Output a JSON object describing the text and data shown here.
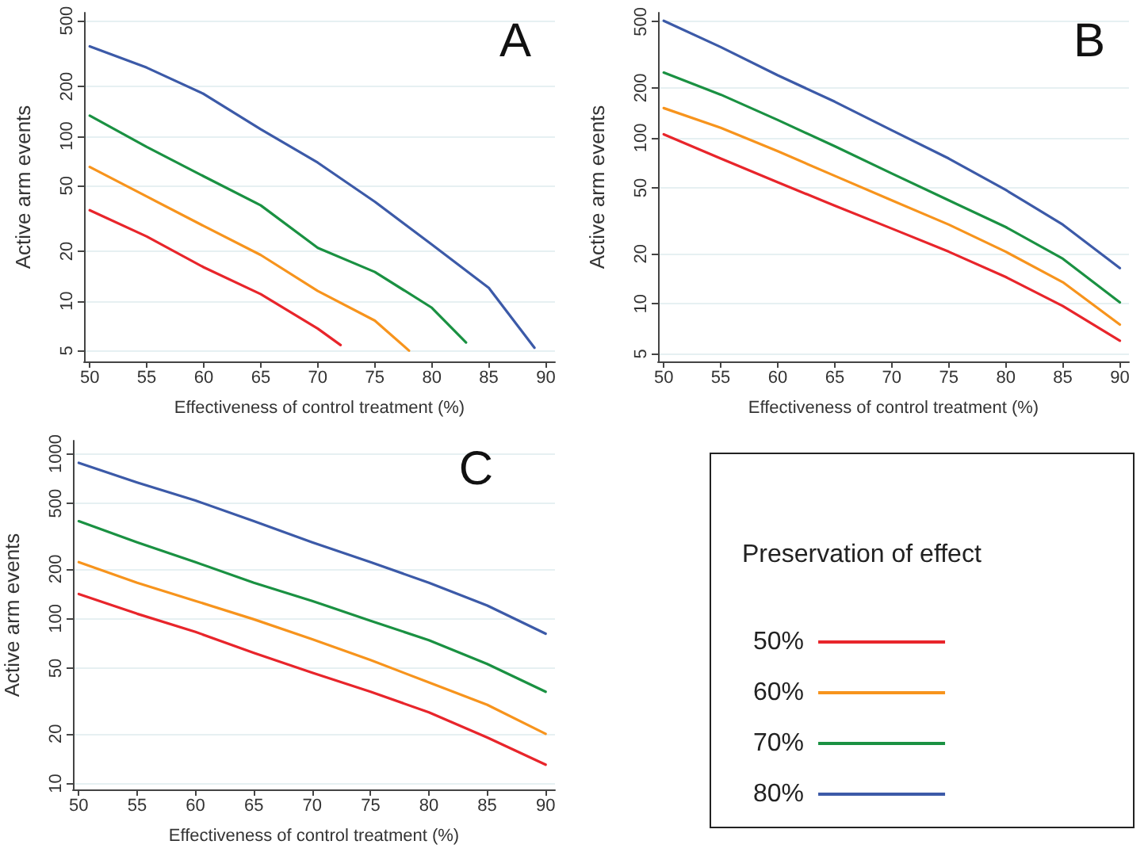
{
  "chart_data": [
    {
      "type": "line",
      "title": "A",
      "xlabel": "Effectiveness of control treatment (%)",
      "ylabel": "Active arm events",
      "log": "y",
      "grid": "y",
      "legend": false,
      "marker": "none",
      "line_style": "solid",
      "xlim": [
        49.5,
        90.8
      ],
      "xticks": [
        50,
        55,
        60,
        65,
        70,
        75,
        80,
        85,
        90
      ],
      "ylim": [
        4.3,
        560
      ],
      "yticks": [
        5,
        10,
        20,
        50,
        100,
        200,
        500
      ],
      "series": [
        {
          "color": "#e8252b",
          "x": [
            50,
            55,
            60,
            65,
            70,
            72
          ],
          "values": [
            35.5,
            24.6,
            16,
            11,
            6.8,
            5.4
          ]
        },
        {
          "color": "#f7941d",
          "x": [
            50,
            55,
            60,
            65,
            70,
            75,
            78
          ],
          "values": [
            65,
            43,
            28.5,
            19,
            11.5,
            7.6,
            5
          ]
        },
        {
          "color": "#1a9142",
          "x": [
            50,
            55,
            60,
            65,
            70,
            75,
            80,
            83
          ],
          "values": [
            133,
            86,
            57,
            38,
            21,
            15,
            9.1,
            5.6
          ]
        },
        {
          "color": "#3c5aa8",
          "x": [
            50,
            55,
            60,
            65,
            70,
            75,
            80,
            85,
            87,
            89
          ],
          "values": [
            350,
            260,
            180,
            110,
            69,
            40,
            22,
            12,
            7.9,
            5.2
          ]
        }
      ]
    },
    {
      "type": "line",
      "title": "B",
      "xlabel": "Effectiveness of control treatment (%)",
      "ylabel": "Active arm events",
      "log": "y",
      "grid": "y",
      "legend": false,
      "marker": "none",
      "line_style": "solid",
      "xlim": [
        49.5,
        90.8
      ],
      "xticks": [
        50,
        55,
        60,
        65,
        70,
        75,
        80,
        85,
        90
      ],
      "ylim": [
        4.5,
        567
      ],
      "yticks": [
        5,
        10,
        20,
        50,
        100,
        200,
        500
      ],
      "x": [
        50,
        55,
        60,
        65,
        70,
        75,
        80,
        85,
        90
      ],
      "series": [
        {
          "color": "#e8252b",
          "values": [
            105,
            75,
            54,
            39,
            28.4,
            20.6,
            14.5,
            9.7,
            6
          ]
        },
        {
          "color": "#f7941d",
          "values": [
            151,
            115,
            83,
            59,
            42,
            30,
            20.6,
            13.5,
            7.5
          ]
        },
        {
          "color": "#1a9142",
          "values": [
            247,
            182,
            128,
            89,
            61,
            42,
            29,
            18.7,
            10.2
          ]
        },
        {
          "color": "#3c5aa8",
          "values": [
            507,
            352,
            238,
            165,
            111,
            75,
            48.5,
            30,
            16.4
          ]
        }
      ]
    },
    {
      "type": "line",
      "title": "C",
      "xlabel": "Effectiveness of control treatment (%)",
      "ylabel": "Active arm events",
      "log": "y",
      "grid": "y",
      "legend": "right",
      "legend_title": "Preservation of effect",
      "marker": "none",
      "line_style": "solid",
      "xlim": [
        49.5,
        90.8
      ],
      "xticks": [
        50,
        55,
        60,
        65,
        70,
        75,
        80,
        85,
        90
      ],
      "ylim": [
        9.2,
        1200
      ],
      "yticks": [
        10,
        20,
        50,
        100,
        200,
        500,
        1000
      ],
      "x": [
        50,
        55,
        60,
        65,
        70,
        75,
        80,
        85,
        90
      ],
      "series": [
        {
          "name": "50%",
          "color": "#e8252b",
          "values": [
            141,
            107,
            83,
            62,
            47,
            36,
            27,
            19,
            13
          ]
        },
        {
          "name": "60%",
          "color": "#f7941d",
          "values": [
            220,
            165,
            128,
            99,
            75,
            56,
            41,
            30,
            20
          ]
        },
        {
          "name": "70%",
          "color": "#1a9142",
          "values": [
            390,
            290,
            220,
            165,
            128,
            97,
            74,
            53,
            36
          ]
        },
        {
          "name": "80%",
          "color": "#3c5aa8",
          "values": [
            880,
            670,
            520,
            390,
            290,
            220,
            165,
            120,
            81
          ]
        }
      ]
    }
  ]
}
